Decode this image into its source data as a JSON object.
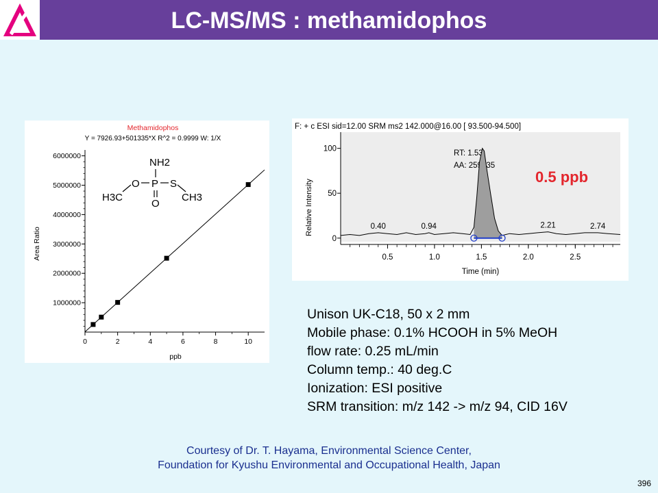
{
  "header": {
    "title": "LC-MS/MS : methamidophos",
    "logo_icon": "triangle-logo-icon"
  },
  "colors": {
    "header_bg": "#673f9b",
    "page_bg": "#e4f6fb",
    "accent_red": "#e3262d",
    "credit_blue": "#1a2f8f"
  },
  "chart_data": [
    {
      "type": "scatter",
      "title": "Methamidophos",
      "subtitle": "Y = 7926.93+501335*X   R^2 = 0.9999   W: 1/X",
      "xlabel": "ppb",
      "ylabel": "Area Ratio",
      "xlim": [
        0,
        11
      ],
      "ylim": [
        0,
        6200000
      ],
      "xticks": [
        0,
        2,
        4,
        6,
        8,
        10
      ],
      "yticks": [
        1000000,
        2000000,
        3000000,
        4000000,
        5000000,
        6000000
      ],
      "ytick_labels": [
        "1000000",
        "2000000",
        "3000000",
        "4000000",
        "5000000",
        "6000000"
      ],
      "grid": false,
      "points": [
        {
          "x": 0.5,
          "y": 258600
        },
        {
          "x": 1,
          "y": 509300
        },
        {
          "x": 2,
          "y": 1010600
        },
        {
          "x": 5,
          "y": 2514600
        },
        {
          "x": 10,
          "y": 5021300
        }
      ],
      "fit_line": {
        "intercept": 7926.93,
        "slope": 501335
      },
      "structure_labels": {
        "nh2": "NH2",
        "o_single": "O",
        "p": "P",
        "s": "S",
        "h3c": "H3C",
        "ch3": "CH3",
        "o_double": "O"
      }
    },
    {
      "type": "line",
      "header": "F: + c ESI sid=12.00  SRM ms2 142.000@16.00 [ 93.500-94.500]",
      "xlabel": "Time (min)",
      "ylabel": "Relative Intensity",
      "xlim": [
        0,
        2.98
      ],
      "ylim": [
        -4,
        118
      ],
      "xticks": [
        0.5,
        1.0,
        1.5,
        2.0,
        2.5
      ],
      "xtick_labels": [
        "0.5",
        "1.0",
        "1.5",
        "2.0",
        "2.5"
      ],
      "yticks": [
        0,
        50,
        100
      ],
      "ytick_labels": [
        "0",
        "50",
        "100"
      ],
      "grid": false,
      "series": [
        {
          "x": [
            0,
            0.1,
            0.2,
            0.3,
            0.4,
            0.5,
            0.6,
            0.7,
            0.8,
            0.9,
            0.94,
            1.0,
            1.1,
            1.2,
            1.3,
            1.38,
            1.42,
            1.45,
            1.48,
            1.51,
            1.53,
            1.56,
            1.6,
            1.64,
            1.68,
            1.72,
            1.76,
            1.8,
            1.9,
            2.0,
            2.1,
            2.21,
            2.3,
            2.4,
            2.5,
            2.6,
            2.74,
            2.85,
            2.98
          ],
          "y": [
            3,
            4,
            3,
            5,
            6,
            5,
            4,
            6,
            4,
            5,
            6,
            4,
            5,
            6,
            5,
            4,
            12,
            45,
            85,
            100,
            97,
            75,
            48,
            22,
            8,
            3,
            4,
            5,
            4,
            5,
            6,
            7,
            5,
            4,
            5,
            6,
            6,
            5,
            4
          ]
        }
      ],
      "annotations": [
        {
          "x": 0.4,
          "text": "0.40"
        },
        {
          "x": 0.94,
          "text": "0.94"
        },
        {
          "x": 2.21,
          "text": "2.21"
        },
        {
          "x": 2.74,
          "text": "2.74"
        }
      ],
      "peak": {
        "rt_label": "RT: 1.53",
        "area_label": "AA: 259335",
        "start": 1.42,
        "end": 1.72
      },
      "concentration_label": "0.5 ppb"
    }
  ],
  "conditions": [
    "Unison UK-C18, 50 x 2 mm",
    "Mobile phase: 0.1% HCOOH in 5% MeOH",
    "flow rate: 0.25 mL/min",
    "Column temp.: 40 deg.C",
    "Ionization: ESI positive",
    "SRM transition: m/z 142 -> m/z 94, CID 16V"
  ],
  "credit": {
    "line1": "Courtesy of Dr. T. Hayama, Environmental Science Center,",
    "line2": "Foundation for Kyushu Environmental and Occupational Health, Japan"
  },
  "slide_number": "396"
}
